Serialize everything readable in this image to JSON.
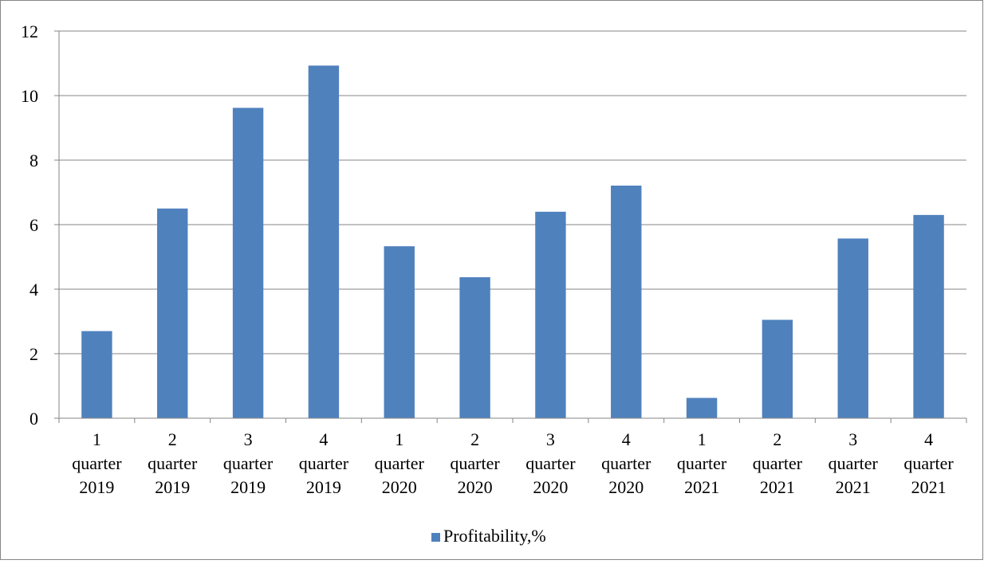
{
  "chart_data": {
    "type": "bar",
    "categories": [
      [
        "1",
        "quarter",
        "2019"
      ],
      [
        "2",
        "quarter",
        "2019"
      ],
      [
        "3",
        "quarter",
        "2019"
      ],
      [
        "4",
        "quarter",
        "2019"
      ],
      [
        "1",
        "quarter",
        "2020"
      ],
      [
        "2",
        "quarter",
        "2020"
      ],
      [
        "3",
        "quarter",
        "2020"
      ],
      [
        "4",
        "quarter",
        "2020"
      ],
      [
        "1",
        "quarter",
        "2021"
      ],
      [
        "2",
        "quarter",
        "2021"
      ],
      [
        "3",
        "quarter",
        "2021"
      ],
      [
        "4",
        "quarter",
        "2021"
      ]
    ],
    "series": [
      {
        "name": "Profitability,%",
        "values": [
          2.7,
          6.5,
          9.62,
          10.93,
          5.33,
          4.37,
          6.4,
          7.21,
          0.63,
          3.05,
          5.57,
          6.3
        ]
      }
    ],
    "title": "",
    "xlabel": "",
    "ylabel": "",
    "ylim": [
      0,
      12
    ],
    "yticks": [
      "0",
      "2",
      "4",
      "6",
      "8",
      "10",
      "12"
    ],
    "grid": true,
    "legend_position": "bottom",
    "colors": {
      "bar": "#4f81bd",
      "grid": "#868686",
      "axis": "#868686",
      "frame": "#868686"
    }
  }
}
